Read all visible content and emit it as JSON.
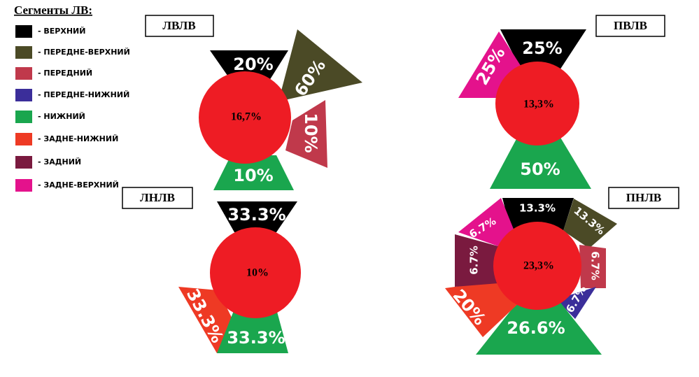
{
  "legend": {
    "title": "Сегменты ЛВ:",
    "items": [
      "- ВЕРХНИЙ",
      "- ПЕРЕДНЕ-ВЕРХНИЙ",
      "- ПЕРЕДНИЙ",
      "- ПЕРЕДНЕ-НИЖНИЙ",
      "- НИЖНИЙ",
      "- ЗАДНЕ-НИЖНИЙ",
      "- ЗАДНИЙ",
      "- ЗАДНЕ-ВЕРХНИЙ"
    ]
  },
  "diagrams": [
    {
      "label": "ЛВЛВ",
      "center": "16,7%",
      "segments": [
        "20%",
        "60%",
        "10%",
        "10%"
      ]
    },
    {
      "label": "ПВЛВ",
      "center": "13,3%",
      "segments": [
        "25%",
        "25%",
        "50%"
      ]
    },
    {
      "label": "ЛНЛВ",
      "center": "10%",
      "segments": [
        "33.3%",
        "33.3%",
        "33.3%"
      ]
    },
    {
      "label": "ПНЛВ",
      "center": "23,3%",
      "segments": [
        "13.3%",
        "13.3%",
        "6.7%",
        "6.7%",
        "26.6%",
        "20%",
        "6.7%",
        "6.7%"
      ]
    }
  ]
}
